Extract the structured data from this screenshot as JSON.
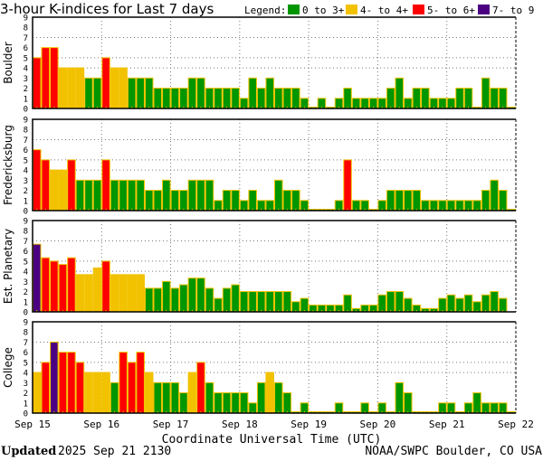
{
  "chart_data": {
    "type": "bar",
    "title": "3-hour K-indices for Last 7 days",
    "legend_label": "Legend:",
    "legend": [
      {
        "label": "0 to 3+",
        "color": "#009600"
      },
      {
        "label": "4- to 4+",
        "color": "#f2c200"
      },
      {
        "label": "5- to 6+",
        "color": "#ff0000"
      },
      {
        "label": "7- to 9",
        "color": "#4b0082"
      }
    ],
    "bar_outline_color": "#f2c200",
    "ylim": [
      0,
      9
    ],
    "yticks": [
      "0",
      "1",
      "2",
      "3",
      "4",
      "5",
      "6",
      "7",
      "8",
      "9"
    ],
    "ygrid_levels": [
      4,
      5,
      7
    ],
    "xticks": [
      "Sep 15",
      "Sep 16",
      "Sep 17",
      "Sep 18",
      "Sep 19",
      "Sep 20",
      "Sep 21",
      "Sep 22"
    ],
    "xlabel": "Coordinate Universal Time (UTC)",
    "bars_per_day": 8,
    "series": [
      {
        "name": "Boulder",
        "values": [
          5,
          6,
          6,
          4,
          4,
          4,
          3,
          3,
          5,
          4,
          4,
          3,
          3,
          3,
          2,
          2,
          2,
          2,
          3,
          3,
          2,
          2,
          2,
          2,
          1,
          3,
          2,
          3,
          2,
          2,
          2,
          1,
          0,
          1,
          0,
          1,
          2,
          1,
          1,
          1,
          1,
          2,
          3,
          1,
          2,
          2,
          1,
          1,
          1,
          2,
          2,
          0,
          3,
          2,
          2,
          0
        ]
      },
      {
        "name": "Fredericksburg",
        "values": [
          6,
          5,
          4,
          4,
          5,
          3,
          3,
          3,
          5,
          3,
          3,
          3,
          3,
          2,
          2,
          3,
          2,
          2,
          3,
          3,
          3,
          1,
          2,
          2,
          1,
          2,
          1,
          1,
          3,
          2,
          2,
          1,
          0,
          0,
          0,
          1,
          5,
          1,
          1,
          0,
          1,
          2,
          2,
          2,
          2,
          1,
          1,
          1,
          1,
          1,
          1,
          1,
          2,
          3,
          2,
          0
        ]
      },
      {
        "name": "Est. Planetary",
        "values": [
          6.67,
          5.33,
          5,
          4.67,
          5.33,
          3.67,
          3.67,
          4.33,
          5,
          3.67,
          3.67,
          3.67,
          3.67,
          2.33,
          2.33,
          3,
          2.33,
          2.67,
          3.33,
          3.33,
          2.33,
          1.33,
          2.33,
          2.67,
          2,
          2,
          2,
          2,
          2,
          2,
          1,
          1.33,
          0.67,
          0.67,
          0.67,
          0.67,
          1.67,
          0.33,
          0.67,
          0.67,
          1.67,
          2,
          2,
          1.33,
          0.67,
          0.33,
          0.33,
          1.33,
          1.67,
          1.33,
          1.67,
          1,
          1.67,
          2,
          1.33,
          null
        ]
      },
      {
        "name": "College",
        "values": [
          4,
          5,
          7,
          6,
          6,
          5,
          4,
          4,
          4,
          3,
          6,
          5,
          6,
          4,
          3,
          3,
          3,
          2,
          4,
          5,
          3,
          2,
          2,
          2,
          2,
          1,
          3,
          4,
          3,
          2,
          0,
          1,
          0,
          0,
          0,
          1,
          0,
          0,
          1,
          0,
          1,
          0,
          3,
          2,
          0,
          0,
          0,
          1,
          1,
          0,
          1,
          2,
          1,
          1,
          1,
          0
        ]
      }
    ]
  },
  "footer": {
    "updated_label": "Updated",
    "updated_value": "2025 Sep 21 2130",
    "credit": "NOAA/SWPC Boulder, CO USA"
  }
}
